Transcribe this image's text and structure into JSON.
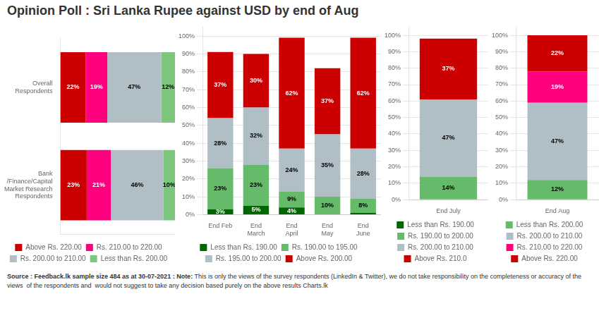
{
  "title": "Opinion Poll : Sri Lanka Rupee against USD by end of Aug",
  "annotations": [
    "Source : Feedback.lk sample size 484 as at 30-07-2021 : Note:",
    "This is only the views of the survey respondents (LinkedIn & Twitter), we do not take responsibility",
    "on the completeness or accuracy of the views  of the respondents and  would not suggest to take any decision based purely on the above results",
    "Charts.lk"
  ],
  "chart_data": [
    {
      "type": "bar",
      "orientation": "horizontal",
      "stacked": true,
      "categories": [
        "Overall\nRespondents",
        "Bank /Finance/Capital Market Research\nRespondents"
      ],
      "series": [
        {
          "name": "Above Rs. 220.00",
          "color": "#cc0000",
          "values": [
            22,
            23
          ],
          "value_labels": [
            "22%",
            "23%"
          ]
        },
        {
          "name": "Rs. 210.00 to 220.00",
          "color": "#ff007f",
          "values": [
            19,
            21
          ],
          "value_labels": [
            "19%",
            "21%"
          ]
        },
        {
          "name": "Rs. 200.00 to 210.00",
          "color": "#b0bec5",
          "values": [
            47,
            46
          ],
          "value_labels": [
            "47%",
            "46%"
          ]
        },
        {
          "name": "Less than Rs. 200.00",
          "color": "#7dc67e",
          "values": [
            12,
            10
          ],
          "value_labels": [
            "12%",
            "10%"
          ]
        }
      ],
      "xlim": [
        0,
        100
      ],
      "tick_labels": "y",
      "grid": false,
      "legend": "bottom",
      "data_labels": true
    },
    {
      "type": "bar",
      "stacked": true,
      "categories": [
        "End Feb",
        "End\nMarch",
        "End\nApril",
        "End\nMay",
        "End\nJune"
      ],
      "series": [
        {
          "name": "Less than Rs. 190.00",
          "color": "#006600",
          "values": [
            3,
            5,
            4,
            0,
            1
          ],
          "value_labels": [
            "3%",
            "5%",
            "4%",
            null,
            null
          ]
        },
        {
          "name": "Rs. 190.00 to 195.00",
          "color": "#66bb6a",
          "values": [
            23,
            23,
            9,
            10,
            8
          ],
          "value_labels": [
            "23%",
            "23%",
            "9%",
            "10%",
            "8%"
          ]
        },
        {
          "name": "Rs. 195.00 to 200.00",
          "color": "#b0bec5",
          "values": [
            28,
            32,
            24,
            35,
            28
          ],
          "value_labels": [
            "28%",
            "32%",
            "24%",
            "35%",
            "28%"
          ]
        },
        {
          "name": "Above Rs. 200.00",
          "color": "#cc0000",
          "values": [
            37,
            30,
            62,
            37,
            62
          ],
          "value_labels": [
            "37%",
            "30%",
            "62%",
            "37%",
            "62%"
          ]
        }
      ],
      "ylim": [
        0,
        105
      ],
      "yticks": [
        {
          "value": 0,
          "label": "0%"
        },
        {
          "value": 10,
          "label": "10%"
        },
        {
          "value": 20,
          "label": "20%"
        },
        {
          "value": 30,
          "label": "30%"
        },
        {
          "value": 40,
          "label": "40%"
        },
        {
          "value": 50,
          "label": "50%"
        },
        {
          "value": 60,
          "label": "60%"
        },
        {
          "value": 70,
          "label": "70%"
        },
        {
          "value": 80,
          "label": "80%"
        },
        {
          "value": 90,
          "label": "90%"
        },
        {
          "value": 100,
          "label": "100%"
        }
      ],
      "grid": true,
      "legend": "bottom",
      "data_labels": true
    },
    {
      "type": "bar",
      "stacked": true,
      "categories": [
        "End July"
      ],
      "series": [
        {
          "name": "Less than Rs. 190.00",
          "color": "#006600",
          "values": [
            0
          ],
          "value_labels": [
            null
          ]
        },
        {
          "name": "Rs. 190.00 to 200.00",
          "color": "#66bb6a",
          "values": [
            14
          ],
          "value_labels": [
            "14%"
          ]
        },
        {
          "name": "Rs. 200.00 to 210.00",
          "color": "#b0bec5",
          "values": [
            47
          ],
          "value_labels": [
            "47%"
          ]
        },
        {
          "name": "Above Rs. 210.0",
          "color": "#cc0000",
          "values": [
            37
          ],
          "value_labels": [
            "37%"
          ]
        }
      ],
      "ylim": [
        0,
        105
      ],
      "yticks": [
        {
          "value": 0,
          "label": "0%"
        },
        {
          "value": 10,
          "label": "10%"
        },
        {
          "value": 20,
          "label": "20%"
        },
        {
          "value": 30,
          "label": "30%"
        },
        {
          "value": 40,
          "label": "40%"
        },
        {
          "value": 50,
          "label": "50%"
        },
        {
          "value": 60,
          "label": "60%"
        },
        {
          "value": 70,
          "label": "70%"
        },
        {
          "value": 80,
          "label": "80%"
        },
        {
          "value": 90,
          "label": "90%"
        },
        {
          "value": 100,
          "label": "100%"
        }
      ],
      "grid": true,
      "legend": "bottom",
      "data_labels": true
    },
    {
      "type": "bar",
      "stacked": true,
      "categories": [
        "End Aug"
      ],
      "series": [
        {
          "name": "Less than Rs. 200.00",
          "color": "#66bb6a",
          "values": [
            12
          ],
          "value_labels": [
            "12%"
          ]
        },
        {
          "name": "Rs. 200.00 to 210.00",
          "color": "#b0bec5",
          "values": [
            47
          ],
          "value_labels": [
            "47%"
          ]
        },
        {
          "name": "Rs. 210.00 to 220.00",
          "color": "#ff007f",
          "values": [
            19
          ],
          "value_labels": [
            "19%"
          ]
        },
        {
          "name": "Above Rs. 220.00",
          "color": "#cc0000",
          "values": [
            22
          ],
          "value_labels": [
            "22%"
          ]
        }
      ],
      "ylim": [
        0,
        105
      ],
      "yticks": [
        {
          "value": 0,
          "label": "0%"
        },
        {
          "value": 10,
          "label": "10%"
        },
        {
          "value": 20,
          "label": "20%"
        },
        {
          "value": 30,
          "label": "30%"
        },
        {
          "value": 40,
          "label": "40%"
        },
        {
          "value": 50,
          "label": "50%"
        },
        {
          "value": 60,
          "label": "60%"
        },
        {
          "value": 70,
          "label": "70%"
        },
        {
          "value": 80,
          "label": "80%"
        },
        {
          "value": 90,
          "label": "90%"
        },
        {
          "value": 100,
          "label": "100%"
        }
      ],
      "grid": true,
      "legend": "bottom",
      "data_labels": true
    }
  ]
}
